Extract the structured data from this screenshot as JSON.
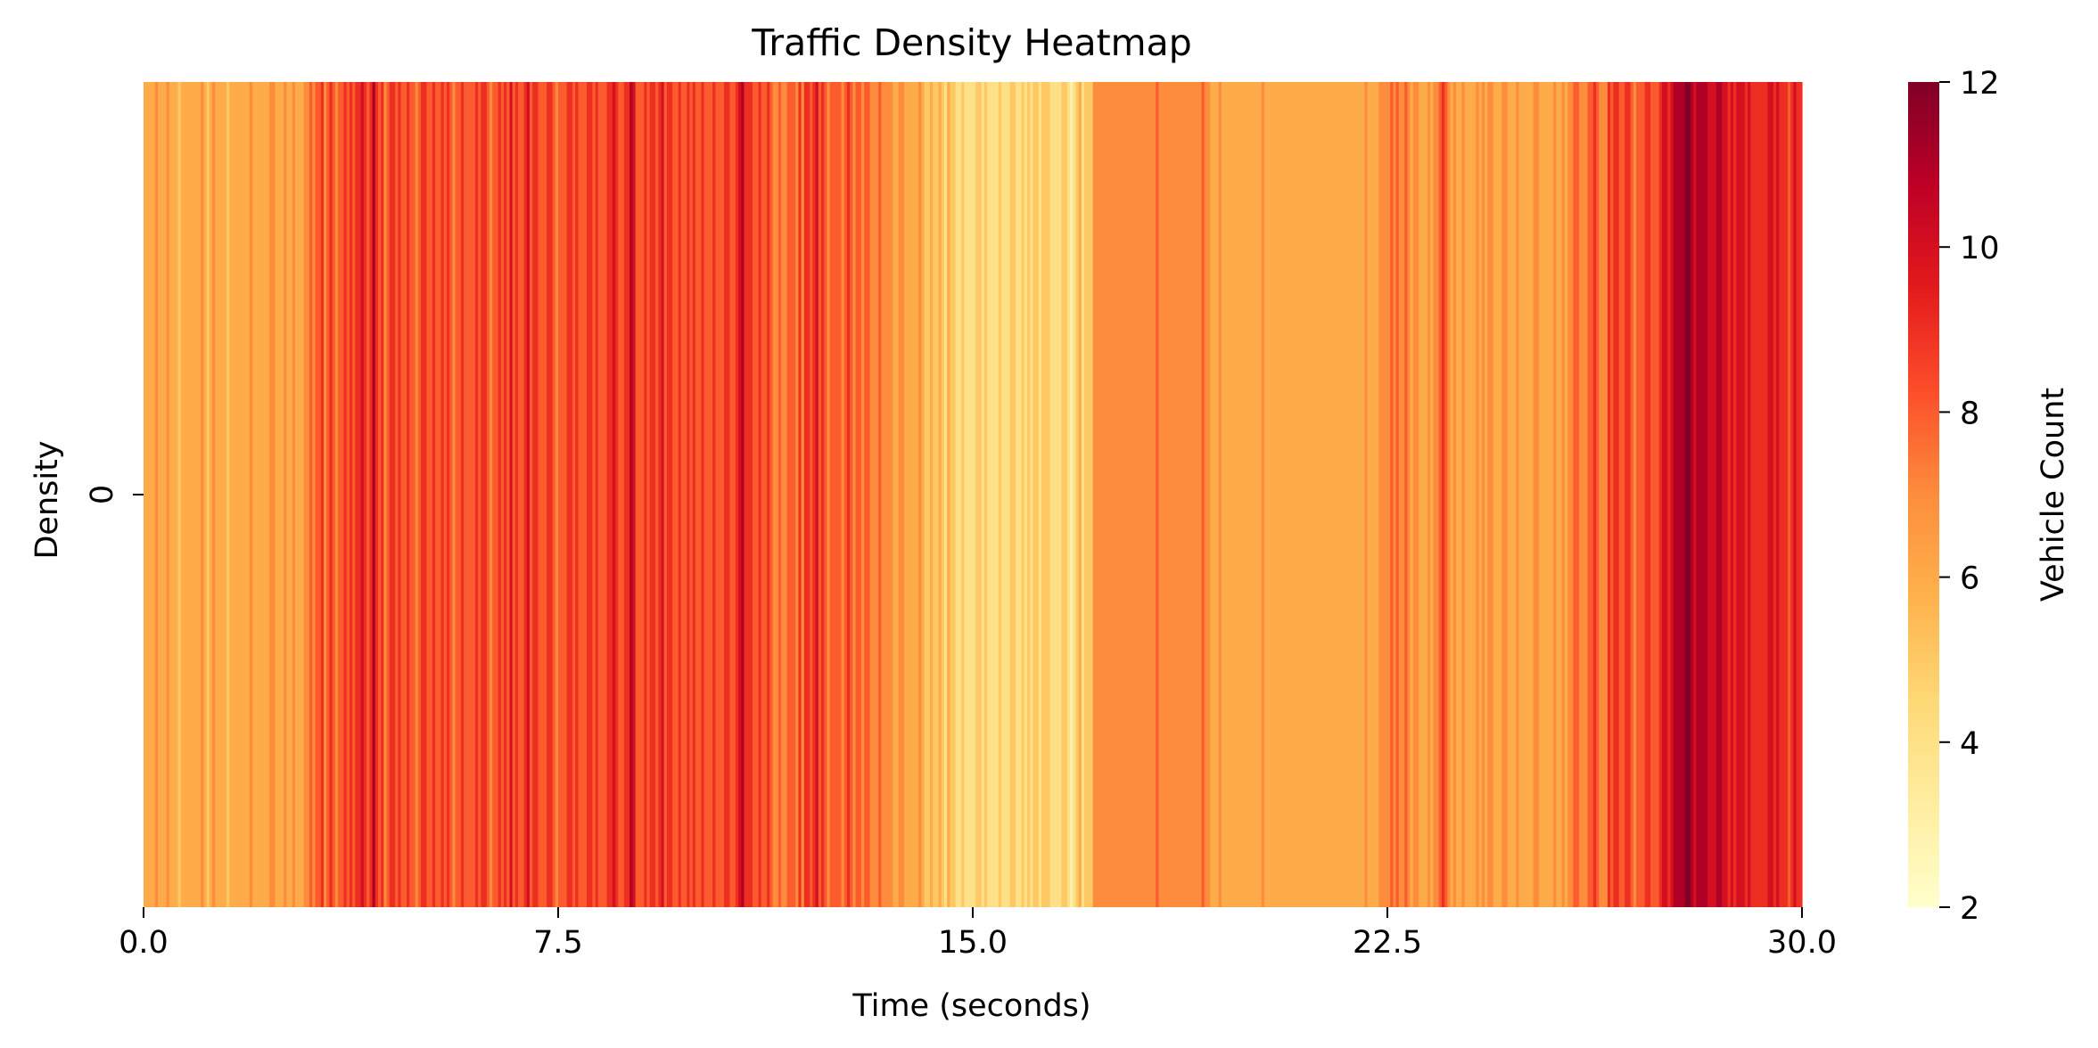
{
  "chart_data": {
    "type": "heatmap",
    "title": "Traffic Density Heatmap",
    "xlabel": "Time (seconds)",
    "ylabel": "Density",
    "xlim": [
      0,
      30
    ],
    "x_ticks": [
      "0.0",
      "7.5",
      "15.0",
      "22.5",
      "30.0"
    ],
    "y_ticks": [
      "0"
    ],
    "colorbar": {
      "label": "Vehicle Count",
      "range": [
        2,
        12
      ],
      "ticks": [
        "2",
        "4",
        "6",
        "8",
        "10",
        "12"
      ],
      "colormap": "YlOrRd"
    },
    "rows": 1,
    "values": [
      6,
      6,
      6,
      6,
      7,
      6,
      6,
      6,
      7,
      6,
      6,
      6,
      5,
      6,
      6,
      6,
      6,
      6,
      6,
      6,
      7,
      6,
      5,
      6,
      7,
      6,
      6,
      6,
      6,
      5,
      6,
      6,
      6,
      6,
      6,
      6,
      6,
      7,
      6,
      6,
      6,
      6,
      6,
      6,
      7,
      7,
      6,
      6,
      6,
      7,
      6,
      6,
      7,
      6,
      6,
      6,
      7,
      7,
      8,
      7,
      8,
      8,
      9,
      7,
      8,
      9,
      8,
      7,
      8,
      8,
      9,
      8,
      9,
      8,
      9,
      9,
      10,
      9,
      8,
      9,
      11,
      9,
      8,
      9,
      7,
      8,
      9,
      9,
      8,
      9,
      8,
      8,
      9,
      8,
      8,
      7,
      8,
      9,
      9,
      8,
      8,
      9,
      8,
      8,
      9,
      8,
      9,
      8,
      7,
      8,
      8,
      9,
      8,
      8,
      8,
      8,
      9,
      8,
      9,
      9,
      8,
      7,
      8,
      8,
      9,
      8,
      9,
      8,
      10,
      8,
      9,
      8,
      8,
      9,
      10,
      8,
      9,
      9,
      8,
      8,
      8,
      9,
      9,
      8,
      7,
      8,
      8,
      8,
      9,
      9,
      8,
      9,
      8,
      8,
      8,
      9,
      9,
      8,
      9,
      8,
      8,
      8,
      9,
      9,
      10,
      9,
      8,
      8,
      9,
      9,
      11,
      10,
      8,
      8,
      8,
      9,
      8,
      9,
      9,
      8,
      9,
      10,
      8,
      9,
      9,
      8,
      8,
      9,
      8,
      8,
      9,
      8,
      9,
      8,
      8,
      9,
      8,
      8,
      8,
      9,
      8,
      8,
      8,
      9,
      9,
      8,
      8,
      9,
      10,
      11,
      9,
      9,
      9,
      8,
      8,
      9,
      8,
      8,
      9,
      8,
      7,
      7,
      8,
      7,
      7,
      8,
      8,
      8,
      7,
      9,
      7,
      9,
      9,
      8,
      9,
      10,
      8,
      9,
      8,
      7,
      8,
      8,
      8,
      8,
      7,
      8,
      9,
      8,
      7,
      8,
      8,
      7,
      8,
      8,
      7,
      7,
      7,
      8,
      7,
      7,
      7,
      7,
      6,
      6,
      7,
      7,
      6,
      6,
      6,
      6,
      6,
      7,
      6,
      5,
      5,
      6,
      5,
      5,
      6,
      5,
      4,
      6,
      5,
      5,
      4,
      4,
      5,
      4,
      4,
      4,
      4,
      5,
      5,
      4,
      5,
      4,
      4,
      4,
      4,
      5,
      4,
      4,
      4,
      5,
      5,
      4,
      4,
      5,
      4,
      5,
      4,
      5,
      5,
      4,
      5,
      5,
      5,
      4,
      4,
      4,
      4,
      5,
      5,
      4,
      3,
      4,
      5,
      6,
      4,
      5,
      5,
      5,
      7,
      7,
      7,
      7,
      7,
      7,
      7,
      7,
      7,
      7,
      7,
      7,
      7,
      7,
      7,
      7,
      7,
      7,
      7,
      7,
      7,
      7,
      8,
      7,
      7,
      7,
      7,
      7,
      7,
      7,
      7,
      7,
      7,
      7,
      7,
      7,
      7,
      7,
      8,
      7,
      7,
      6,
      6,
      6,
      7,
      6,
      6,
      6,
      6,
      6,
      6,
      6,
      6,
      6,
      6,
      6,
      6,
      6,
      6,
      7,
      6,
      6,
      6,
      6,
      6,
      6,
      6,
      6,
      6,
      6,
      6,
      6,
      6,
      6,
      6,
      6,
      6,
      6,
      6,
      6,
      6,
      6,
      6,
      6,
      6,
      6,
      6,
      6,
      6,
      6,
      6,
      6,
      6,
      6,
      6,
      7,
      6,
      6,
      6,
      6,
      7,
      7,
      7,
      7,
      8,
      7,
      8,
      7,
      7,
      8,
      7,
      6,
      7,
      7,
      6,
      6,
      6,
      7,
      6,
      7,
      7,
      8,
      9,
      8,
      7,
      6,
      7,
      6,
      6,
      7,
      6,
      6,
      6,
      6,
      7,
      6,
      7,
      6,
      7,
      7,
      6,
      6,
      6,
      7,
      7,
      6,
      6,
      6,
      7,
      6,
      6,
      6,
      6,
      6,
      7,
      7,
      6,
      6,
      6,
      6,
      6,
      7,
      6,
      6,
      7,
      6,
      7,
      7,
      8,
      8,
      7,
      7,
      7,
      8,
      8,
      9,
      8,
      7,
      7,
      7,
      9,
      8,
      9,
      9,
      8,
      8,
      9,
      9,
      8,
      7,
      8,
      8,
      8,
      9,
      9,
      8,
      8,
      8,
      9,
      10,
      10,
      9,
      10,
      11,
      11,
      11,
      11,
      12,
      12,
      11,
      10,
      11,
      11,
      11,
      11,
      10,
      10,
      10,
      11,
      11,
      10,
      10,
      9,
      10,
      9,
      10,
      10,
      10,
      9,
      10,
      9,
      9,
      9,
      9,
      9,
      9,
      10,
      10,
      9,
      10,
      9,
      9,
      9,
      8,
      9,
      10,
      9,
      9
    ]
  }
}
